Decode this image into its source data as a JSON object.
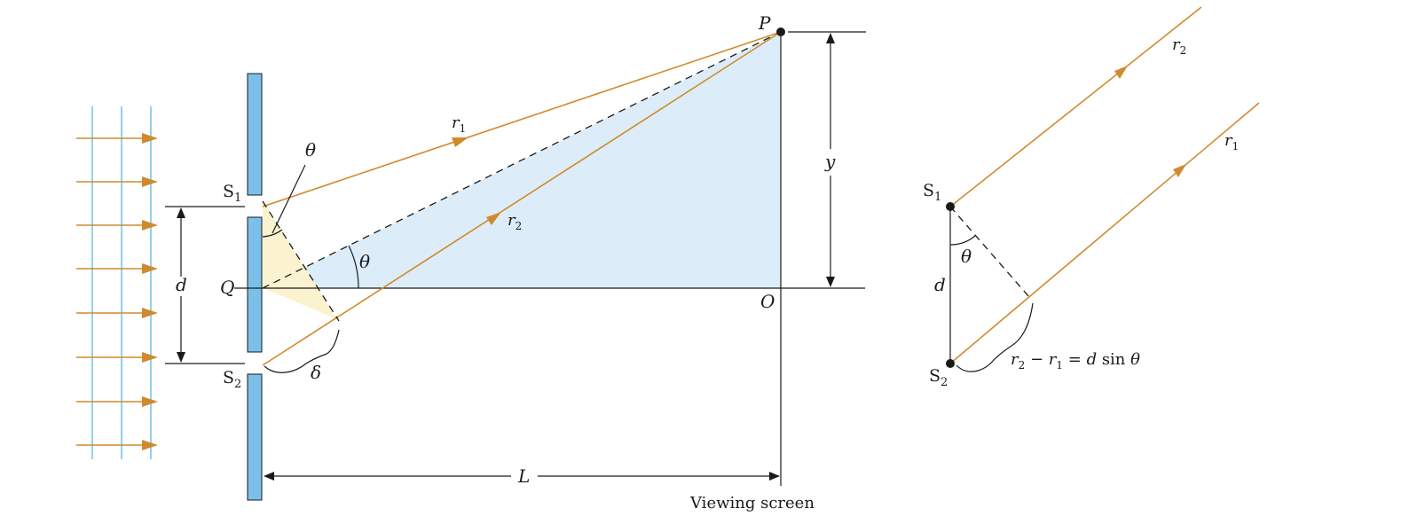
{
  "labels": {
    "S1": "S",
    "S1_sub": "1",
    "S2": "S",
    "S2_sub": "2",
    "theta": "θ",
    "d": "d",
    "Q": "Q",
    "P": "P",
    "O": "O",
    "y": "y",
    "L": "L",
    "delta": "δ",
    "r1": "r",
    "r1_sub": "1",
    "r2": "r",
    "r2_sub": "2",
    "viewing_screen": "Viewing screen"
  },
  "right": {
    "S1": "S",
    "S1_sub": "1",
    "S2": "S",
    "S2_sub": "2",
    "d": "d",
    "theta": "θ",
    "r1": "r",
    "r1_sub": "1",
    "r2": "r",
    "r2_sub": "2",
    "formula_r2": "r",
    "formula_r2_sub": "2",
    "formula_minus": " − ",
    "formula_r1": "r",
    "formula_r1_sub": "1",
    "formula_eq": " = ",
    "formula_d": "d",
    "formula_sin": " sin ",
    "formula_theta": "θ"
  },
  "colors": {
    "ray": "#d08a2e",
    "wavefront": "#7cc3ea",
    "barrier": "#7cc0ea",
    "large_triangle": "#dcedf9",
    "small_triangle": "#fbf3cf"
  }
}
